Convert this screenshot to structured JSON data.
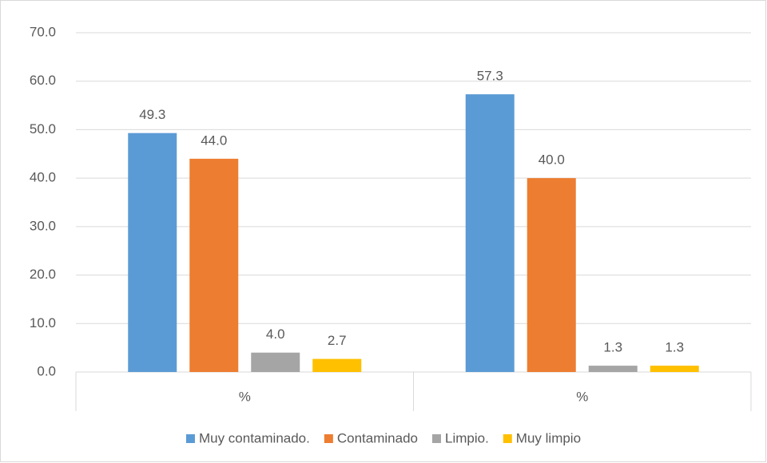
{
  "chart_data": {
    "type": "bar",
    "categories": [
      "%",
      "%"
    ],
    "series": [
      {
        "name": "Muy contaminado.",
        "color": "#5b9bd5",
        "values": [
          49.3,
          57.3
        ],
        "value_labels": [
          "49.3",
          "57.3"
        ]
      },
      {
        "name": "Contaminado",
        "color": "#ed7d31",
        "values": [
          44,
          40
        ],
        "value_labels": [
          "44.0",
          "40.0"
        ]
      },
      {
        "name": "Limpio.",
        "color": "#a5a5a5",
        "values": [
          4,
          1.3
        ],
        "value_labels": [
          "4.0",
          "1.3"
        ]
      },
      {
        "name": "Muy limpio",
        "color": "#ffc000",
        "values": [
          2.7,
          1.3
        ],
        "value_labels": [
          "2.7",
          "1.3"
        ]
      }
    ],
    "ylim": [
      0,
      70
    ],
    "yticks": [
      {
        "value": 0,
        "label": "0.0"
      },
      {
        "value": 10,
        "label": "10.0"
      },
      {
        "value": 20,
        "label": "20.0"
      },
      {
        "value": 30,
        "label": "30.0"
      },
      {
        "value": 40,
        "label": "40.0"
      },
      {
        "value": 50,
        "label": "50.0"
      },
      {
        "value": 60,
        "label": "60.0"
      },
      {
        "value": 70,
        "label": "70.0"
      }
    ],
    "grid": true,
    "legend": "bottom"
  }
}
